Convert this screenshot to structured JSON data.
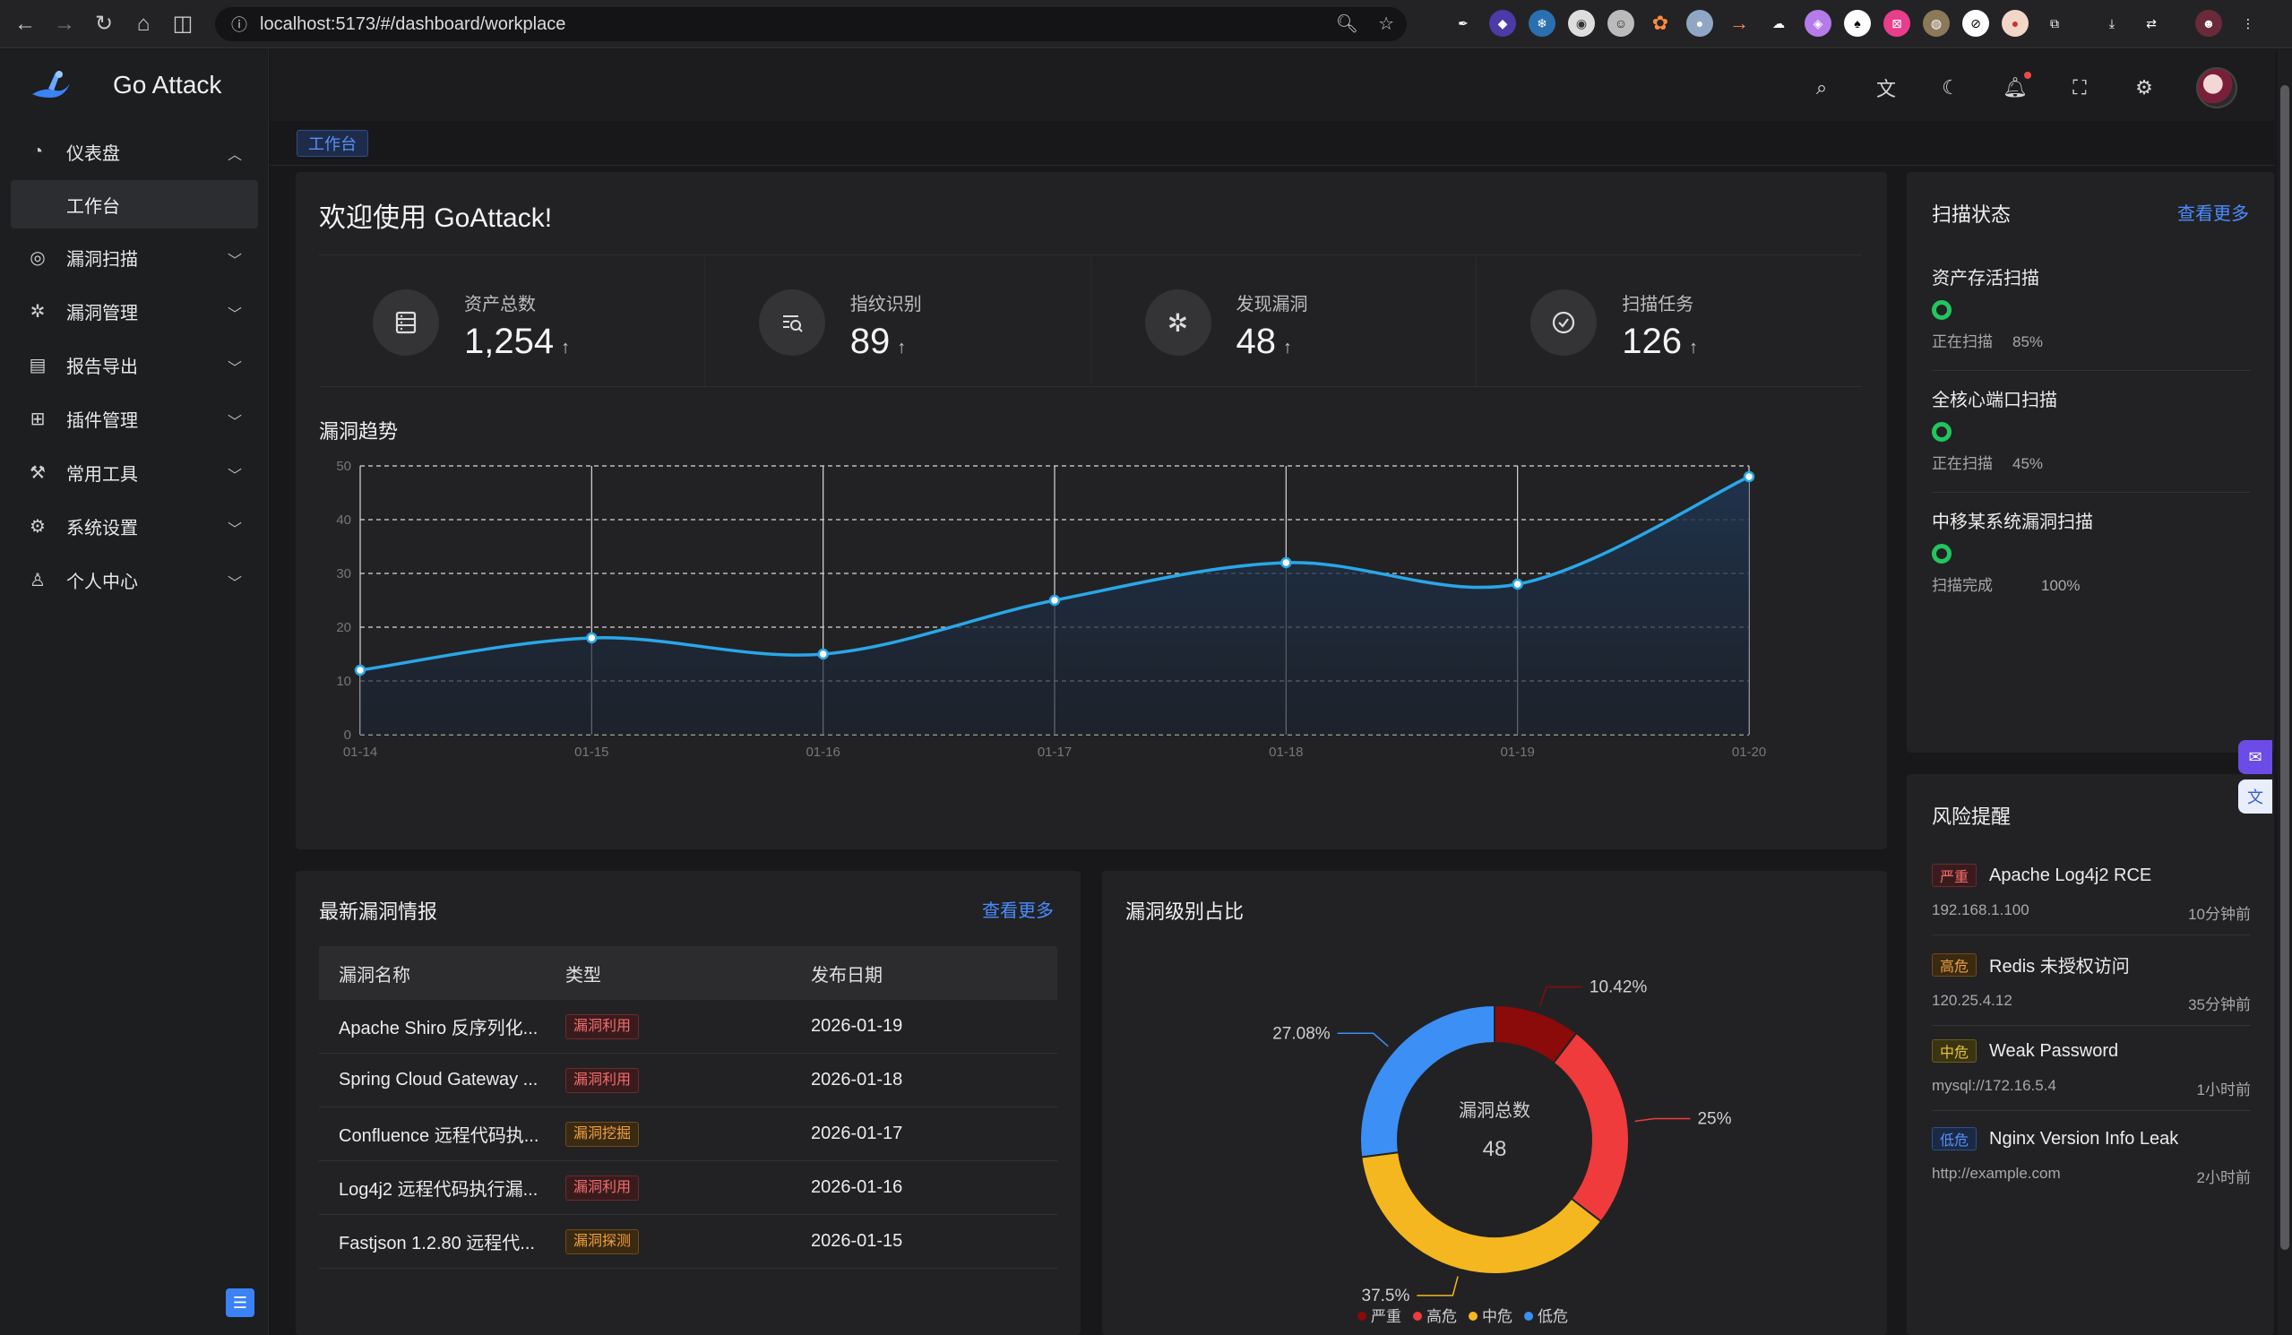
{
  "browser": {
    "url": "localhost:5173/#/dashboard/workplace"
  },
  "app": {
    "name": "Go Attack"
  },
  "sidebar": {
    "items": [
      {
        "label": "仪表盘",
        "icon": "dashboard-icon",
        "expanded": true
      },
      {
        "label": "漏洞扫描",
        "icon": "scan-icon"
      },
      {
        "label": "漏洞管理",
        "icon": "bug-icon"
      },
      {
        "label": "报告导出",
        "icon": "report-icon"
      },
      {
        "label": "插件管理",
        "icon": "plugin-icon"
      },
      {
        "label": "常用工具",
        "icon": "tool-icon"
      },
      {
        "label": "系统设置",
        "icon": "settings-icon"
      },
      {
        "label": "个人中心",
        "icon": "user-icon"
      }
    ],
    "submenu": {
      "label": "工作台"
    }
  },
  "tags": {
    "active": "工作台"
  },
  "welcome": {
    "title": "欢迎使用 GoAttack!",
    "stats": [
      {
        "label": "资产总数",
        "value": "1,254",
        "icon": "server-icon"
      },
      {
        "label": "指纹识别",
        "value": "89",
        "icon": "fingerprint-icon"
      },
      {
        "label": "发现漏洞",
        "value": "48",
        "icon": "bug-icon"
      },
      {
        "label": "扫描任务",
        "value": "126",
        "icon": "check-circle-icon"
      }
    ],
    "arrow": "↑"
  },
  "trend": {
    "title": "漏洞趋势"
  },
  "chart_data": [
    {
      "type": "area",
      "title": "漏洞趋势",
      "categories": [
        "01-14",
        "01-15",
        "01-16",
        "01-17",
        "01-18",
        "01-19",
        "01-20"
      ],
      "values": [
        12,
        18,
        15,
        25,
        32,
        28,
        48
      ],
      "ylim": [
        0,
        50
      ],
      "yticks": [
        0,
        10,
        20,
        30,
        40,
        50
      ],
      "color": "#3aa0f0",
      "grid": true
    },
    {
      "type": "pie",
      "title": "漏洞级别占比",
      "center_label": "漏洞总数",
      "center_value": "48",
      "slices": [
        {
          "name": "严重",
          "value": 10.42,
          "label": "10.42%",
          "color": "#8b0a0a"
        },
        {
          "name": "高危",
          "value": 25,
          "label": "25%",
          "color": "#ef3b3b"
        },
        {
          "name": "中危",
          "value": 37.5,
          "label": "37.5%",
          "color": "#f5b71f"
        },
        {
          "name": "低危",
          "value": 27.08,
          "label": "27.08%",
          "color": "#3b8ff5"
        }
      ],
      "legend": "bottom"
    }
  ],
  "scan": {
    "title": "扫描状态",
    "more": "查看更多",
    "items": [
      {
        "name": "资产存活扫描",
        "status": "正在扫描",
        "progress": "85%"
      },
      {
        "name": "全核心端口扫描",
        "status": "正在扫描",
        "progress": "45%"
      },
      {
        "name": "中移某系统漏洞扫描",
        "status": "扫描完成",
        "progress": "100%"
      }
    ]
  },
  "risk": {
    "title": "风险提醒",
    "items": [
      {
        "level": "严重",
        "cls": "b-crit",
        "name": "Apache Log4j2 RCE",
        "target": "192.168.1.100",
        "time": "10分钟前"
      },
      {
        "level": "高危",
        "cls": "b-high",
        "name": "Redis 未授权访问",
        "target": "120.25.4.12",
        "time": "35分钟前"
      },
      {
        "level": "中危",
        "cls": "b-mid",
        "name": "Weak Password",
        "target": "mysql://172.16.5.4",
        "time": "1小时前"
      },
      {
        "level": "低危",
        "cls": "b-low",
        "name": "Nginx Version Info Leak",
        "target": "http://example.com",
        "time": "2小时前"
      }
    ]
  },
  "vulns": {
    "title": "最新漏洞情报",
    "more": "查看更多",
    "headers": [
      "漏洞名称",
      "类型",
      "发布日期"
    ],
    "rows": [
      {
        "name": "Apache Shiro 反序列化...",
        "type": "漏洞利用",
        "cls": "t-exp",
        "date": "2026-01-19"
      },
      {
        "name": "Spring Cloud Gateway ...",
        "type": "漏洞利用",
        "cls": "t-exp",
        "date": "2026-01-18"
      },
      {
        "name": "Confluence 远程代码执...",
        "type": "漏洞挖掘",
        "cls": "t-dig",
        "date": "2026-01-17"
      },
      {
        "name": "Log4j2 远程代码执行漏...",
        "type": "漏洞利用",
        "cls": "t-exp",
        "date": "2026-01-16"
      },
      {
        "name": "Fastjson 1.2.80 远程代...",
        "type": "漏洞探测",
        "cls": "t-dig",
        "date": "2026-01-15"
      }
    ]
  },
  "levels": {
    "title": "漏洞级别占比"
  }
}
